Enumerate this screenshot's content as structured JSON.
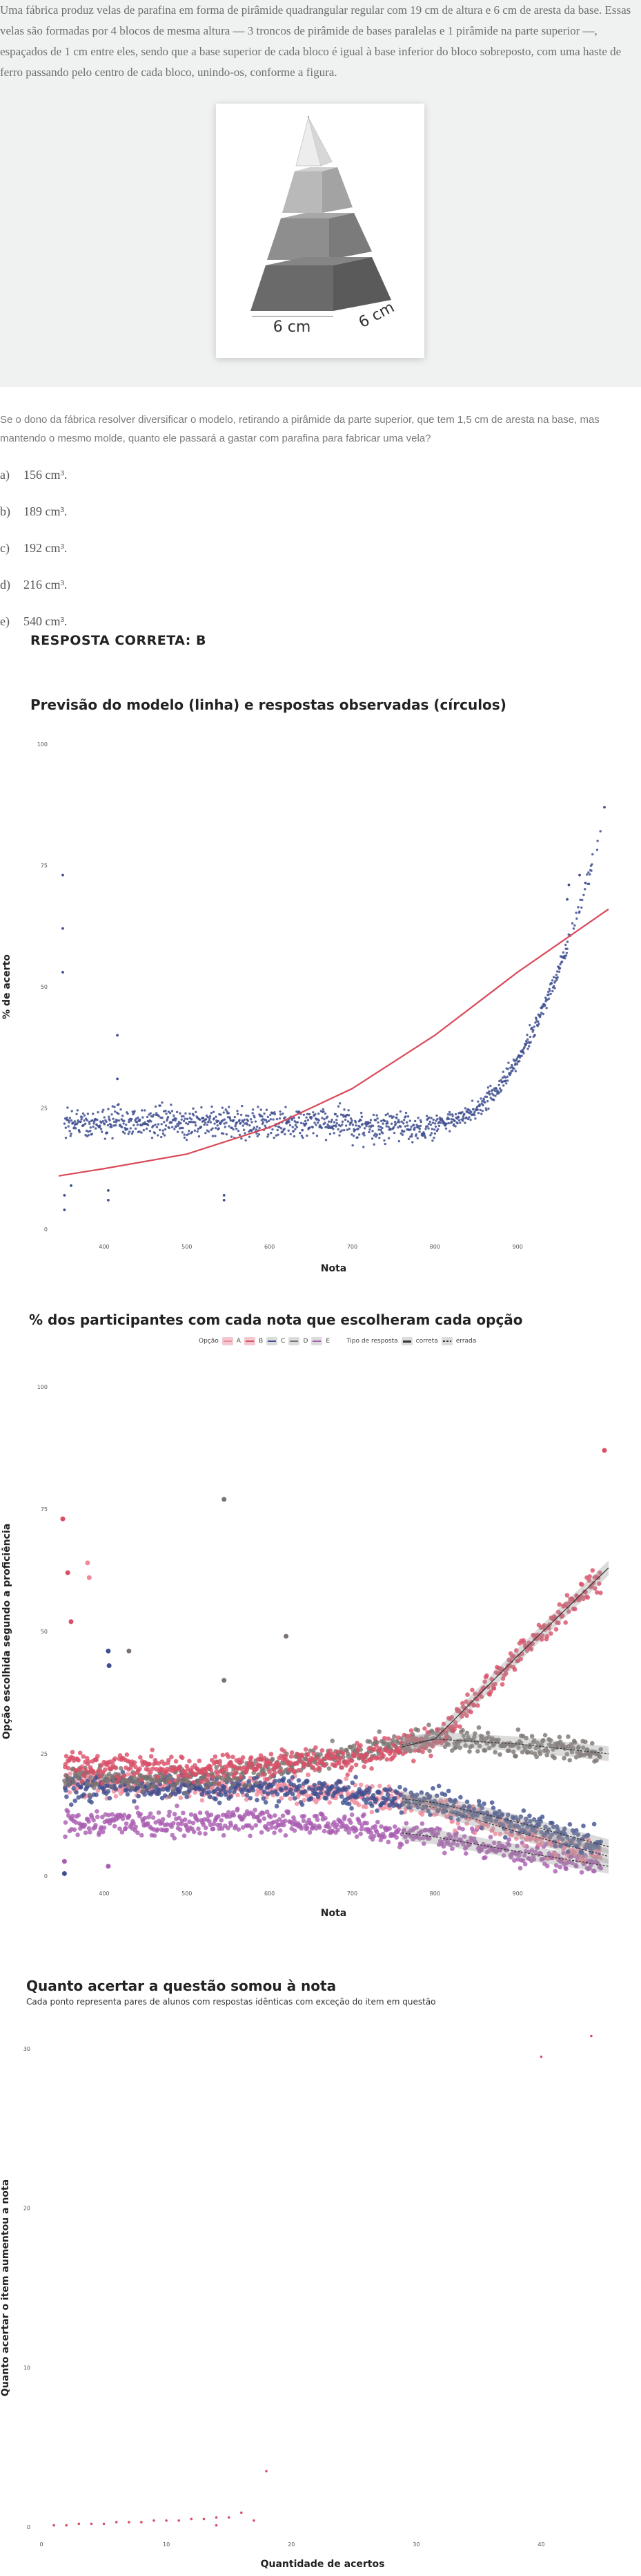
{
  "question": {
    "stem": "Uma fábrica produz velas de parafina em forma de pirâmide quadrangular regular com 19 cm de altura e 6 cm de aresta da base. Essas velas são formadas por 4 blocos de mesma altura — 3 troncos de pirâmide de bases paralelas e 1 pirâmide na parte superior —, espaçados de 1 cm entre eles, sendo que a base superior de cada bloco é igual à base inferior do bloco sobreposto, com uma haste de ferro passando pelo centro de cada bloco, unindo-os, conforme a figura.",
    "figure_labels": [
      "6 cm",
      "6 cm"
    ],
    "prompt": "Se o dono da fábrica resolver diversificar o modelo, retirando a pirâmide da parte superior, que tem 1,5 cm de aresta na base, mas mantendo o mesmo molde, quanto ele passará a gastar com parafina para fabricar uma vela?",
    "alternatives": [
      {
        "letter": "a)",
        "text": "156 cm³."
      },
      {
        "letter": "b)",
        "text": "189 cm³."
      },
      {
        "letter": "c)",
        "text": "192 cm³."
      },
      {
        "letter": "d)",
        "text": "216 cm³."
      },
      {
        "letter": "e)",
        "text": "540 cm³."
      }
    ],
    "answer_label": "RESPOSTA CORRETA: B"
  },
  "colors": {
    "A": "#f08a9b",
    "B": "#d94f66",
    "C": "#3f4f8f",
    "D": "#7a7370",
    "E": "#a95cb0",
    "curve": "#d94a5a",
    "points": "#3f4f8f"
  },
  "chart_data": [
    {
      "type": "scatter",
      "title": "Previsão do modelo (linha) e respostas observadas (círculos)",
      "xlabel": "Nota",
      "ylabel": "% de acerto",
      "xlim": [
        345,
        1010
      ],
      "ylim": [
        0,
        100
      ],
      "xticks": [
        "400",
        "500",
        "600",
        "700",
        "800",
        "900"
      ],
      "yticks": [
        "0",
        "25",
        "50",
        "75",
        "100"
      ],
      "model_curve": {
        "x": [
          345,
          400,
          500,
          600,
          700,
          800,
          900,
          1010
        ],
        "y": [
          11,
          12.5,
          15.5,
          21,
          29,
          40,
          53,
          66
        ]
      },
      "observed": {
        "baseline_mean": 22,
        "baseline_spread": 3,
        "rise_start": 800,
        "rise_end": 1000,
        "outliers": [
          [
            350,
            62
          ],
          [
            350,
            73
          ],
          [
            350,
            53
          ],
          [
            352,
            7
          ],
          [
            352,
            4
          ],
          [
            360,
            9
          ],
          [
            405,
            8
          ],
          [
            405,
            6
          ],
          [
            416,
            40
          ],
          [
            416,
            31
          ],
          [
            545,
            7
          ],
          [
            545,
            6
          ],
          [
            960,
            68
          ],
          [
            962,
            71
          ],
          [
            975,
            73
          ],
          [
            1005,
            87
          ]
        ]
      }
    },
    {
      "type": "line",
      "title": "% dos participantes com cada nota que escolheram cada opção",
      "xlabel": "Nota",
      "ylabel": "Opção escolhida segundo a proficiência",
      "xlim": [
        345,
        1010
      ],
      "ylim": [
        0,
        100
      ],
      "xticks": [
        "400",
        "500",
        "600",
        "700",
        "800",
        "900"
      ],
      "yticks": [
        "0",
        "25",
        "50",
        "75",
        "100"
      ],
      "legend": {
        "option_title": "Opção",
        "options": [
          "A",
          "B",
          "C",
          "D",
          "E"
        ],
        "type_title": "Tipo de resposta",
        "types": [
          "correta",
          "errada"
        ]
      },
      "x": [
        345,
        400,
        500,
        600,
        700,
        800,
        900,
        1010
      ],
      "series": [
        {
          "name": "A",
          "values": [
            19,
            19,
            18.5,
            18,
            17,
            14,
            9,
            4
          ]
        },
        {
          "name": "B",
          "values": [
            23,
            22.5,
            22,
            23,
            24,
            28,
            45,
            63
          ]
        },
        {
          "name": "C",
          "values": [
            18,
            18,
            18,
            18,
            17,
            15,
            11,
            6
          ]
        },
        {
          "name": "D",
          "values": [
            20,
            20,
            20,
            22,
            25,
            28,
            27,
            25
          ]
        },
        {
          "name": "E",
          "values": [
            11,
            11,
            11,
            11,
            10,
            8,
            5,
            2
          ]
        }
      ]
    },
    {
      "type": "scatter",
      "title": "Quanto acertar a questão somou à nota",
      "subtitle": "Cada ponto representa pares de alunos com respostas idênticas com exceção do item em questão",
      "xlabel": "Quantidade de acertos",
      "ylabel": "Quanto acertar o item aumentou a nota",
      "xlim": [
        0,
        45
      ],
      "ylim": [
        0,
        30
      ],
      "xticks": [
        "0",
        "10",
        "20",
        "30",
        "40"
      ],
      "yticks": [
        "0",
        "10",
        "20",
        "30"
      ],
      "points": [
        [
          1,
          0.1
        ],
        [
          2,
          0.1
        ],
        [
          3,
          0.2
        ],
        [
          4,
          0.2
        ],
        [
          5,
          0.2
        ],
        [
          6,
          0.3
        ],
        [
          7,
          0.3
        ],
        [
          8,
          0.3
        ],
        [
          9,
          0.4
        ],
        [
          10,
          0.4
        ],
        [
          11,
          0.4
        ],
        [
          12,
          0.5
        ],
        [
          13,
          0.5
        ],
        [
          14,
          0.6
        ],
        [
          14,
          0.1
        ],
        [
          15,
          0.6
        ],
        [
          16,
          0.9
        ],
        [
          17,
          0.4
        ],
        [
          18,
          3.5
        ],
        [
          40,
          29.5
        ],
        [
          44,
          30.8
        ]
      ]
    }
  ]
}
